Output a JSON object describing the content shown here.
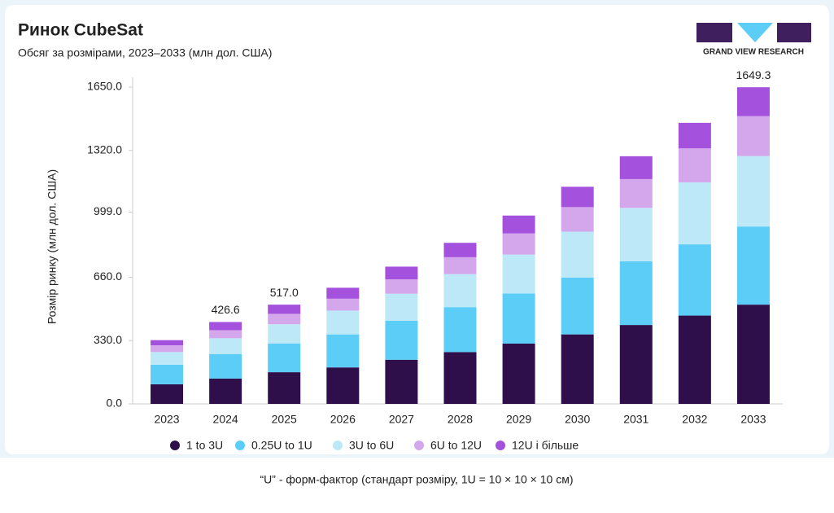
{
  "chart_data": {
    "type": "stacked_bar",
    "title": "Ринок CubeSat",
    "subtitle": "Обсяг за розмірами, 2023–2033 (млн дол. США)",
    "y_label": "Розмір ринку (млн дол. США)",
    "brand": "GRAND VIEW RESEARCH",
    "footnote": "“U” - форм-фактор (стандарт розміру, 1U = 10 × 10 × 10 см)",
    "categories": [
      "2023",
      "2024",
      "2025",
      "2026",
      "2027",
      "2028",
      "2029",
      "2030",
      "2031",
      "2032",
      "2033"
    ],
    "series": [
      {
        "name": "1 to 3U",
        "color": "#2e0f4a",
        "values": [
          102,
          132,
          165,
          190,
          230,
          270,
          314,
          362,
          411,
          460,
          517
        ]
      },
      {
        "name": "0.25U to 1U",
        "color": "#5ccdf6",
        "values": [
          102,
          128,
          150,
          172,
          203,
          234,
          261,
          296,
          332,
          371,
          407
        ]
      },
      {
        "name": "3U to 6U",
        "color": "#bde8f8",
        "values": [
          66,
          82,
          100,
          124,
          141,
          172,
          203,
          239,
          278,
          323,
          367
        ]
      },
      {
        "name": "6U to 12U",
        "color": "#d4a7ec",
        "values": [
          35,
          42,
          54,
          62,
          75,
          88,
          110,
          128,
          150,
          177,
          208
        ]
      },
      {
        "name": "12U і більше",
        "color": "#a452dd",
        "values": [
          27,
          42.6,
          48,
          57,
          66,
          75,
          93,
          106,
          119,
          133,
          150.3
        ]
      }
    ],
    "totals": [
      null,
      426.6,
      517,
      null,
      null,
      null,
      null,
      null,
      null,
      null,
      1649.3
    ],
    "total_labels": [
      null,
      "426.6",
      "517.0",
      null,
      null,
      null,
      null,
      null,
      null,
      null,
      "1649.3"
    ],
    "ylim": [
      0,
      1650
    ],
    "yticks": [
      {
        "value": 0,
        "label": "0.0"
      },
      {
        "value": 330,
        "label": "330.0"
      },
      {
        "value": 660,
        "label": "660.0"
      },
      {
        "value": 999,
        "label": "999.0"
      },
      {
        "value": 1320,
        "label": "1320.0"
      },
      {
        "value": 1650,
        "label": "1650.0"
      }
    ]
  }
}
